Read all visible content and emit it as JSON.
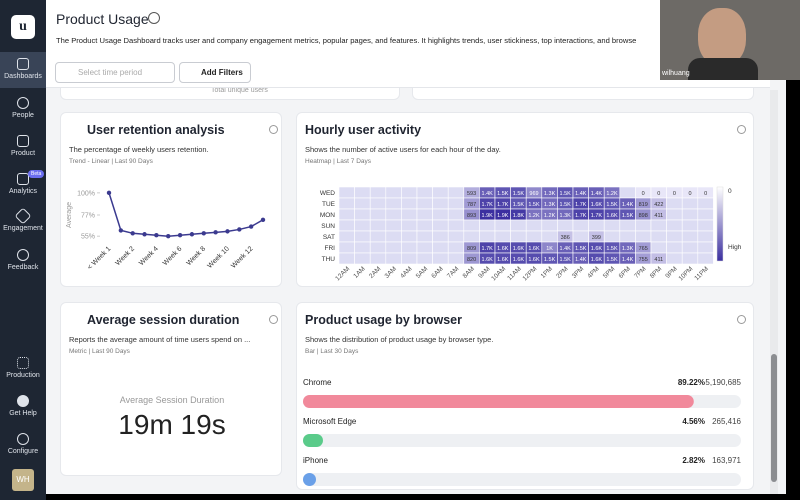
{
  "sidebar": {
    "logo": "u",
    "items": [
      "Dashboards",
      "People",
      "Product",
      "Analytics",
      "Engagement",
      "Feedback"
    ],
    "badge": "Beta",
    "bottom": [
      "Production",
      "Get Help",
      "Configure"
    ],
    "avatar": "WH"
  },
  "header": {
    "title": "Product Usage",
    "description": "The Product Usage Dashboard tracks user and company engagement metrics, popular pages, and features. It highlights trends, user stickiness, top interactions, and browse",
    "time_placeholder": "Select time period",
    "add_filters": "Add Filters"
  },
  "video": {
    "name": "wilhuang"
  },
  "partial_card": {
    "text": "Total unique users"
  },
  "retention": {
    "title": "User retention analysis",
    "description": "The percentage of weekly users retention.",
    "meta": "Trend - Linear | Last 90 Days",
    "chart": {
      "type": "line",
      "y_label": "Average",
      "categories": [
        "< Week 1",
        null,
        "Week 2",
        null,
        "Week 4",
        null,
        "Week 6",
        null,
        "Week 8",
        null,
        "Week 10",
        null,
        "Week 12",
        null
      ],
      "values": [
        100,
        61,
        58,
        57,
        56,
        55,
        56,
        57,
        58,
        59,
        60,
        62,
        65,
        72
      ],
      "color": "#3b3a8f",
      "ylim": [
        50,
        104
      ],
      "yticks": [
        {
          "value": 55,
          "label": "55%"
        },
        {
          "value": 77,
          "label": "77%"
        },
        {
          "value": 100,
          "label": "100%"
        }
      ]
    }
  },
  "hourly": {
    "title": "Hourly user activity",
    "description": "Shows the number of active users for each hour of the day.",
    "meta": "Heatmap | Last 7 Days",
    "chart": {
      "type": "heatmap",
      "categories": [
        "12AM",
        "1AM",
        "2AM",
        "3AM",
        "4AM",
        "5AM",
        "6AM",
        "7AM",
        "8AM",
        "9AM",
        "10AM",
        "11AM",
        "12PM",
        "1PM",
        "2PM",
        "3PM",
        "4PM",
        "5PM",
        "6PM",
        "7PM",
        "8PM",
        "9PM",
        "10PM",
        "11PM"
      ],
      "legend_low": "0",
      "legend_high": "High",
      "color": "#3b2fa0",
      "series": [
        {
          "name": "WED",
          "values": [
            null,
            null,
            null,
            null,
            null,
            null,
            null,
            null,
            593,
            1400,
            1500,
            1500,
            969,
            1300,
            1500,
            1400,
            1400,
            1200,
            null,
            0,
            0,
            0,
            0,
            0
          ],
          "value_labels": [
            null,
            null,
            null,
            null,
            null,
            null,
            null,
            null,
            "593",
            "1.4K",
            "1.5K",
            "1.5K",
            "969",
            "1.3K",
            "1.5K",
            "1.4K",
            "1.4K",
            "1.2K",
            null,
            "0",
            "0",
            "0",
            "0",
            "0"
          ]
        },
        {
          "name": "TUE",
          "values": [
            null,
            null,
            null,
            null,
            null,
            null,
            null,
            null,
            787,
            1700,
            1700,
            1500,
            1500,
            1300,
            1500,
            1700,
            1600,
            1500,
            1400,
            819,
            422,
            null,
            null,
            null
          ],
          "value_labels": [
            null,
            null,
            null,
            null,
            null,
            null,
            null,
            null,
            "787",
            "1.7K",
            "1.7K",
            "1.5K",
            "1.5K",
            "1.3K",
            "1.5K",
            "1.7K",
            "1.6K",
            "1.5K",
            "1.4K",
            "819",
            "422",
            null,
            null,
            null
          ]
        },
        {
          "name": "MON",
          "values": [
            null,
            null,
            null,
            null,
            null,
            null,
            null,
            null,
            893,
            1900,
            1900,
            1800,
            1200,
            1200,
            1300,
            1700,
            1700,
            1600,
            1500,
            898,
            411,
            null,
            null,
            null
          ],
          "value_labels": [
            null,
            null,
            null,
            null,
            null,
            null,
            null,
            null,
            "893",
            "1.9K",
            "1.9K",
            "1.8K",
            "1.2K",
            "1.2K",
            "1.3K",
            "1.7K",
            "1.7K",
            "1.6K",
            "1.5K",
            "898",
            "411",
            null,
            null,
            null
          ]
        },
        {
          "name": "SUN",
          "values": [
            null,
            null,
            null,
            null,
            null,
            null,
            null,
            null,
            null,
            null,
            null,
            null,
            null,
            null,
            null,
            null,
            null,
            null,
            null,
            null,
            null,
            null,
            null,
            null
          ],
          "value_labels": [
            null,
            null,
            null,
            null,
            null,
            null,
            null,
            null,
            null,
            null,
            null,
            null,
            null,
            null,
            null,
            null,
            null,
            null,
            null,
            null,
            null,
            null,
            null,
            null
          ]
        },
        {
          "name": "SAT",
          "values": [
            null,
            null,
            null,
            null,
            null,
            null,
            null,
            null,
            null,
            null,
            null,
            null,
            null,
            null,
            386,
            null,
            399,
            null,
            null,
            null,
            null,
            null,
            null,
            null
          ],
          "value_labels": [
            null,
            null,
            null,
            null,
            null,
            null,
            null,
            null,
            null,
            null,
            null,
            null,
            null,
            null,
            "386",
            null,
            "399",
            null,
            null,
            null,
            null,
            null,
            null,
            null
          ]
        },
        {
          "name": "FRI",
          "values": [
            null,
            null,
            null,
            null,
            null,
            null,
            null,
            null,
            809,
            1700,
            1600,
            1600,
            1600,
            1000,
            1400,
            1500,
            1600,
            1500,
            1300,
            765,
            null,
            null,
            null,
            null
          ],
          "value_labels": [
            null,
            null,
            null,
            null,
            null,
            null,
            null,
            null,
            "809",
            "1.7K",
            "1.6K",
            "1.6K",
            "1.6K",
            "1K",
            "1.4K",
            "1.5K",
            "1.6K",
            "1.5K",
            "1.3K",
            "765",
            null,
            null,
            null,
            null
          ]
        },
        {
          "name": "THU",
          "values": [
            null,
            null,
            null,
            null,
            null,
            null,
            null,
            null,
            820,
            1600,
            1600,
            1600,
            1600,
            1500,
            1500,
            1400,
            1600,
            1500,
            1400,
            755,
            411,
            null,
            null,
            null
          ],
          "value_labels": [
            null,
            null,
            null,
            null,
            null,
            null,
            null,
            null,
            "820",
            "1.6K",
            "1.6K",
            "1.6K",
            "1.6K",
            "1.5K",
            "1.5K",
            "1.4K",
            "1.6K",
            "1.5K",
            "1.4K",
            "755",
            "411",
            null,
            null,
            null
          ]
        }
      ]
    }
  },
  "session": {
    "title": "Average session duration",
    "description": "Reports the average amount of time users spend on ...",
    "meta": "Metric | Last 90 Days",
    "label": "Average Session Duration",
    "value": "19m 19s"
  },
  "browser": {
    "title": "Product usage by browser",
    "description": "Shows the distribution of product usage by browser type.",
    "meta": "Bar | Last 30 Days",
    "chart": {
      "type": "hbar",
      "categories": [
        "Chrome",
        "Microsoft Edge",
        "iPhone"
      ],
      "values": [
        89.22,
        4.56,
        2.82
      ],
      "value_labels": [
        "89.22%",
        "4.56%",
        "2.82%"
      ],
      "counts": [
        5190685,
        265416,
        163971
      ],
      "count_labels": [
        "5,190,685",
        "265,416",
        "163,971"
      ],
      "xlim": [
        0,
        100
      ],
      "colors": [
        "#f1899b",
        "#5acb8a",
        "#6aa0e8"
      ]
    }
  }
}
